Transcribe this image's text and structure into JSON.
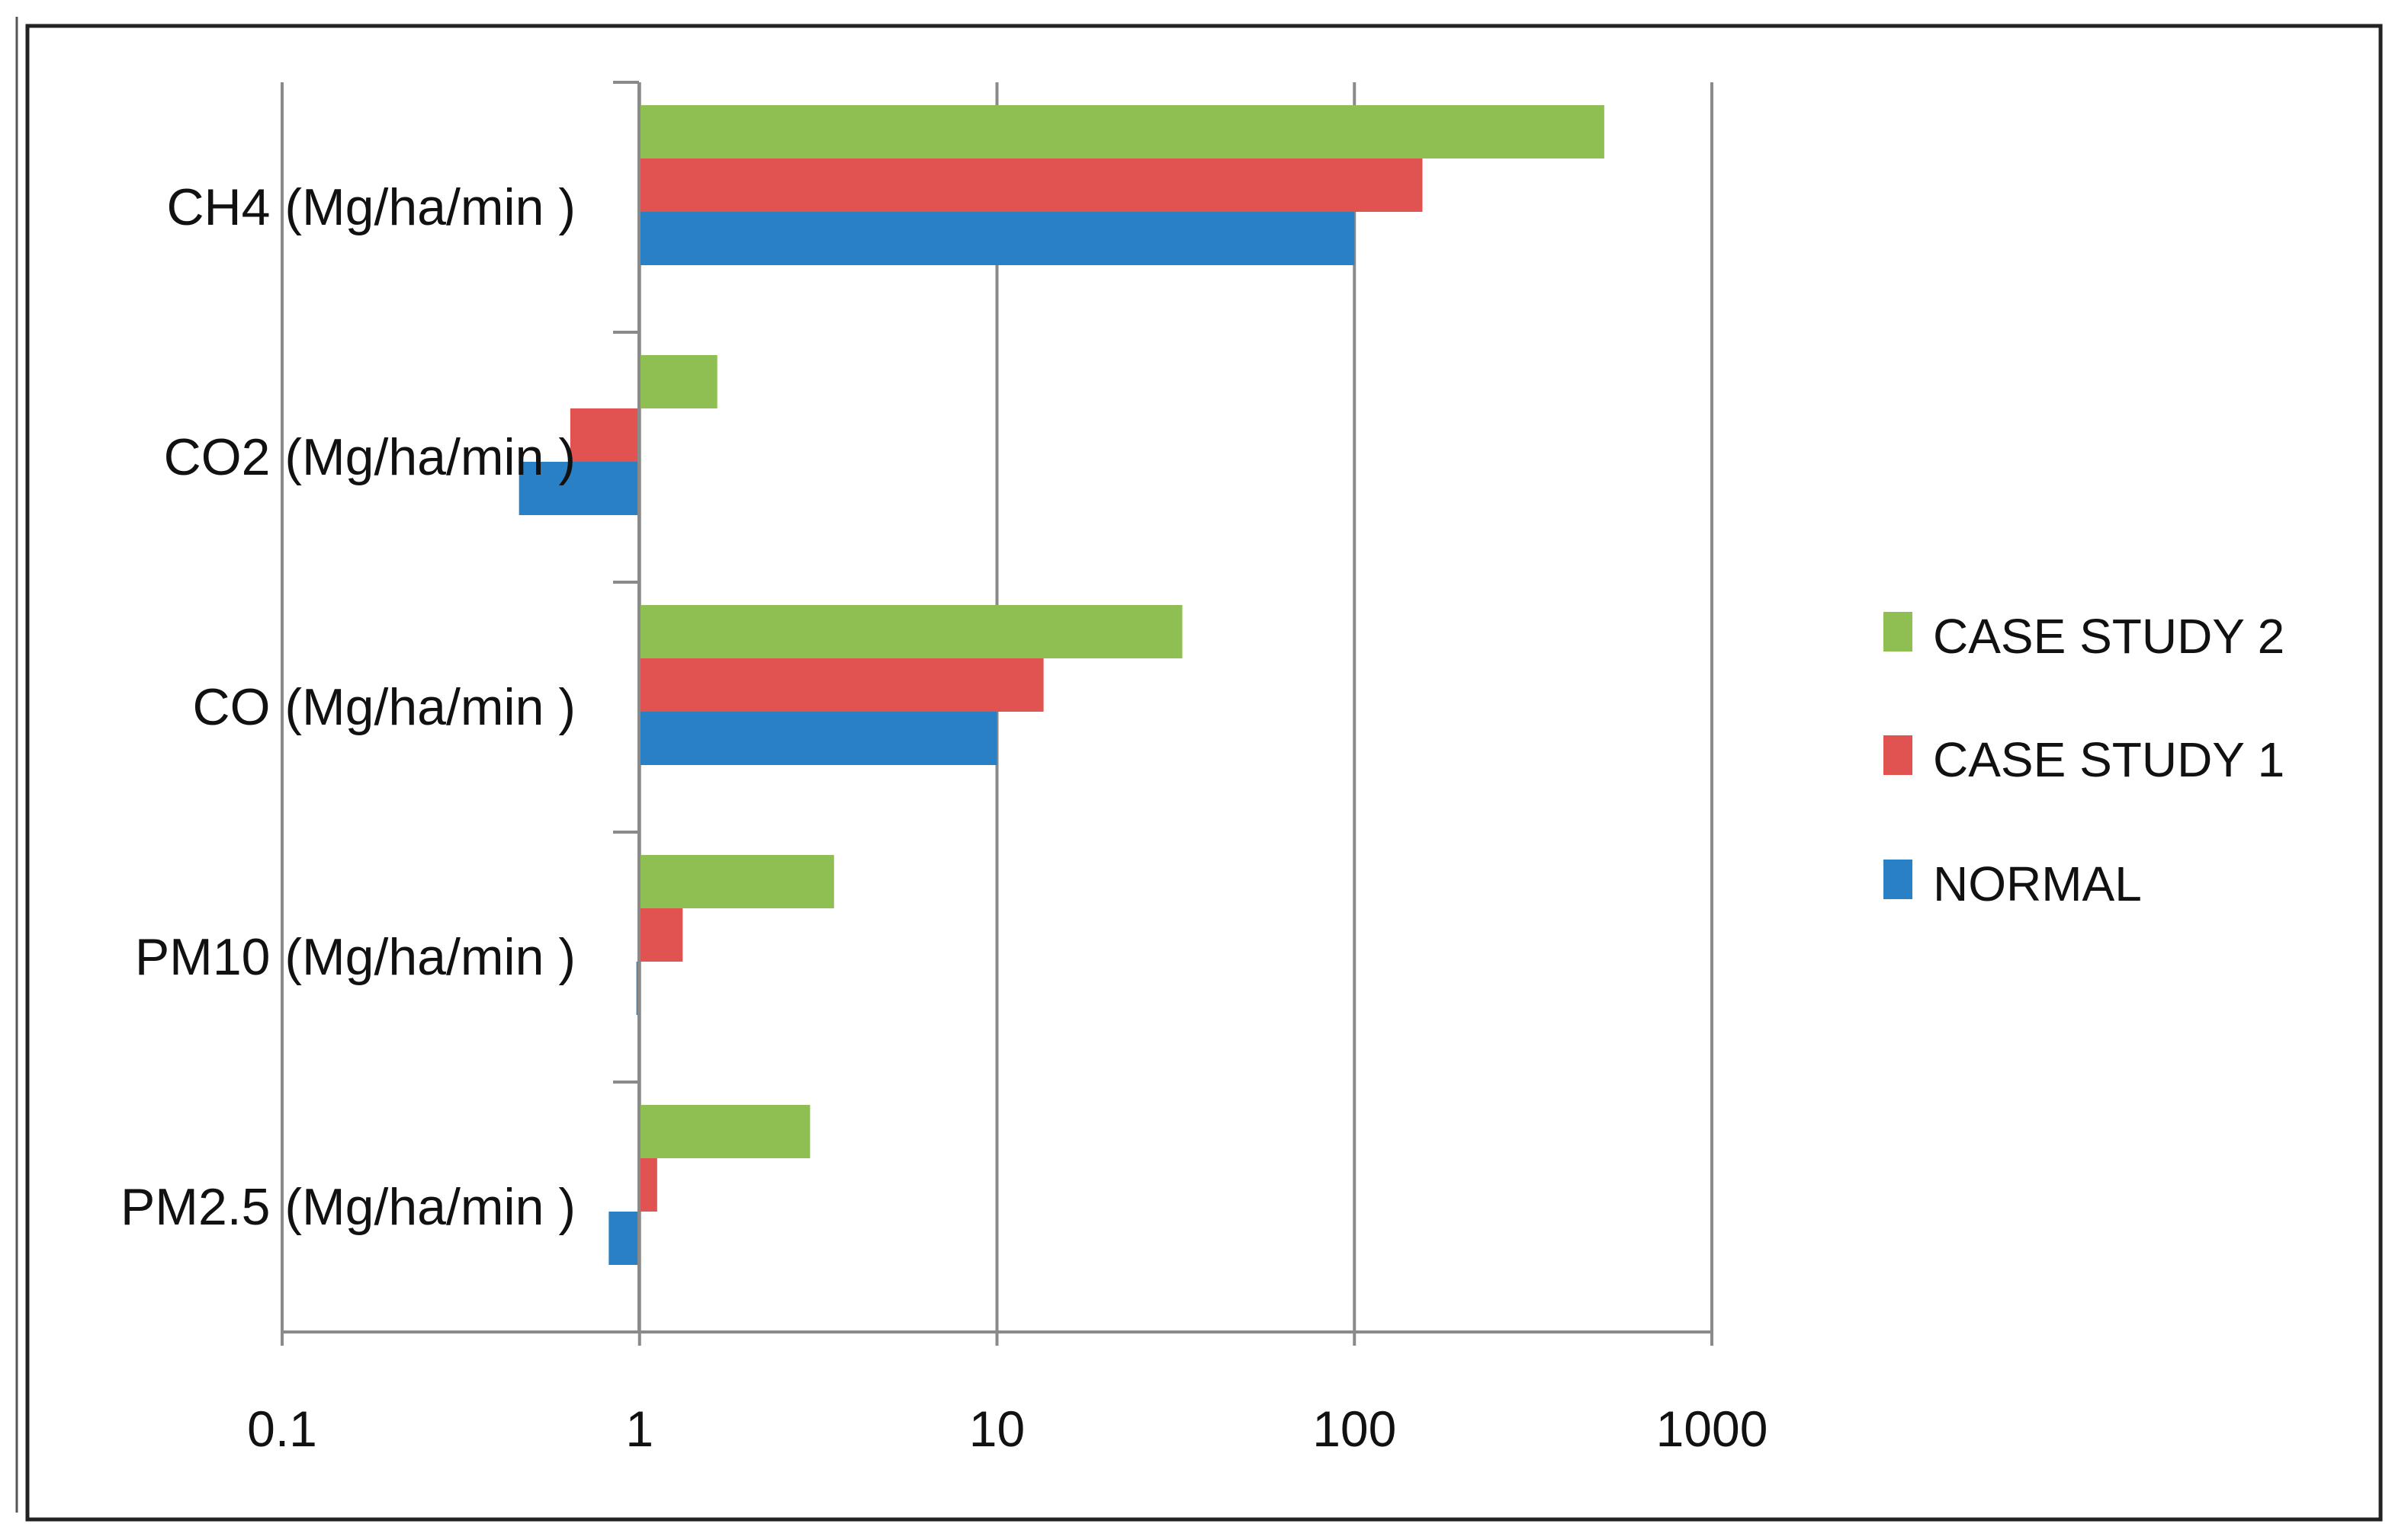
{
  "chart_data": {
    "type": "bar",
    "orientation": "horizontal",
    "x_scale": "log",
    "xlim": [
      0.1,
      1000
    ],
    "base_value": 1,
    "grid": true,
    "legend_position": "right",
    "xticks": [
      "0.1",
      "1",
      "10",
      "100",
      "1000"
    ],
    "categories": [
      "CH4  (Mg/ha/min )",
      "CO2  (Mg/ha/min )",
      "CO  (Mg/ha/min )",
      "PM10  (Mg/ha/min )",
      "PM2.5 (Mg/ha/min )"
    ],
    "series": [
      {
        "name": "NORMAL",
        "color": "#2980c4",
        "values": [
          100,
          0.46,
          10,
          0.98,
          0.82
        ]
      },
      {
        "name": "CASE STUDY 1",
        "color": "#e05350",
        "values": [
          155,
          0.64,
          13.5,
          1.32,
          1.12
        ]
      },
      {
        "name": "CASE STUDY 2",
        "color": "#8fbe53",
        "values": [
          500,
          1.65,
          33,
          3.5,
          3.0
        ]
      }
    ],
    "legend_order": [
      "CASE STUDY 2",
      "CASE STUDY 1",
      "NORMAL"
    ]
  }
}
